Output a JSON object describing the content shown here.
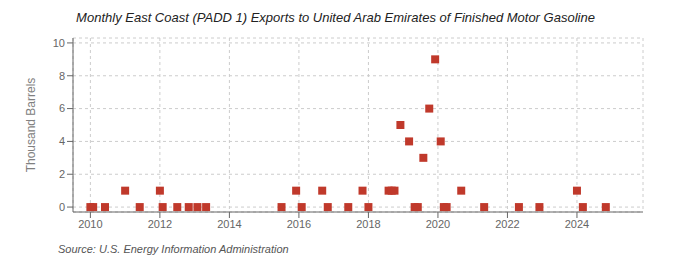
{
  "chart_data": {
    "type": "scatter",
    "title": "Monthly East Coast (PADD 1) Exports to United Arab Emirates of Finished Motor Gasoline",
    "ylabel": "Thousand Barrels",
    "annotations": [
      "Source: U.S. Energy Information Administration"
    ],
    "x": [
      2010.0,
      2010.08,
      2010.42,
      2011.0,
      2011.42,
      2012.0,
      2012.08,
      2012.5,
      2012.83,
      2013.08,
      2013.33,
      2015.5,
      2015.92,
      2016.08,
      2016.67,
      2016.83,
      2017.42,
      2017.83,
      2018.0,
      2018.58,
      2018.67,
      2018.75,
      2018.92,
      2019.17,
      2019.33,
      2019.42,
      2019.58,
      2019.75,
      2019.92,
      2020.08,
      2020.17,
      2020.25,
      2020.67,
      2021.33,
      2022.33,
      2022.92,
      2024.0,
      2024.17,
      2024.83
    ],
    "values": [
      0,
      0,
      0,
      1,
      0,
      1,
      0,
      0,
      0,
      0,
      0,
      0,
      1,
      0,
      1,
      0,
      0,
      1,
      0,
      1,
      1,
      1,
      5,
      4,
      0,
      0,
      3,
      6,
      9,
      4,
      0,
      0,
      1,
      0,
      0,
      0,
      1,
      0,
      0
    ],
    "color": "#c0392b",
    "marker": "square",
    "xlim": [
      2009.5,
      2025.9
    ],
    "xticks": [
      2010,
      2012,
      2014,
      2016,
      2018,
      2020,
      2022,
      2024
    ],
    "ylim": [
      -0.3,
      10.3
    ],
    "yticks": [
      0,
      2,
      4,
      6,
      8,
      10
    ],
    "grid": true
  }
}
